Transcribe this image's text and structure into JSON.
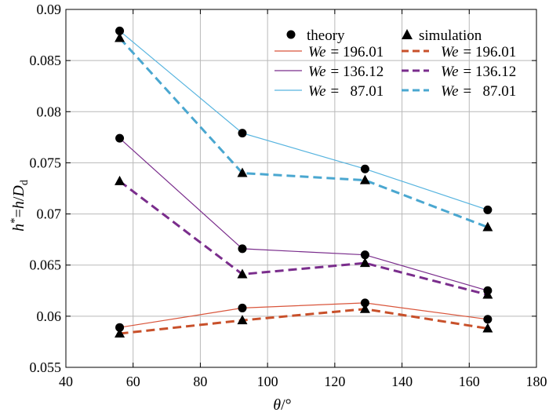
{
  "chart_data": {
    "type": "line",
    "xlim": [
      40,
      180
    ],
    "ylim": [
      0.055,
      0.09
    ],
    "xticks": [
      "40",
      "60",
      "80",
      "100",
      "120",
      "140",
      "160",
      "180"
    ],
    "yticks": [
      "0.055",
      "0.06",
      "0.065",
      "0.07",
      "0.075",
      "0.08",
      "0.085",
      "0.09"
    ],
    "xticks_values": [
      40,
      60,
      80,
      100,
      120,
      140,
      160,
      180
    ],
    "yticks_values": [
      0.055,
      0.06,
      0.065,
      0.07,
      0.075,
      0.08,
      0.085,
      0.09
    ],
    "xlabel": {
      "base": "θ",
      "suffix": "/°"
    },
    "ylabel": {
      "h": "h",
      "star": "*",
      "eq": "=",
      "h2": "h",
      "slash": "/",
      "D": "D",
      "sub": "d"
    },
    "grid": true,
    "legend_placement": "top-right",
    "legend": {
      "theory_title": "theory",
      "simulation_title": "simulation",
      "we_label": "We",
      "entries": [
        {
          "value": "= 196.01",
          "color": "#d9553b"
        },
        {
          "value": "= 136.12",
          "color": "#7a2d8c"
        },
        {
          "value": "=   87.01",
          "color": "#57b4df"
        }
      ],
      "sim_entries": [
        {
          "value": "= 196.01",
          "color": "#c8502a"
        },
        {
          "value": "= 136.12",
          "color": "#7a2d8c"
        },
        {
          "value": "=   87.01",
          "color": "#4aa7d0"
        }
      ]
    },
    "x": [
      56,
      92.5,
      129,
      165.5
    ],
    "series": [
      {
        "group": "theory",
        "we": "196.01",
        "color": "#d9553b",
        "style": "solid",
        "marker": "circle",
        "values": [
          0.0589,
          0.0608,
          0.0613,
          0.0597
        ]
      },
      {
        "group": "theory",
        "we": "136.12",
        "color": "#7a2d8c",
        "style": "solid",
        "marker": "circle",
        "values": [
          0.0774,
          0.0666,
          0.066,
          0.0625
        ]
      },
      {
        "group": "theory",
        "we": "87.01",
        "color": "#57b4df",
        "style": "solid",
        "marker": "circle",
        "values": [
          0.0879,
          0.0779,
          0.0744,
          0.0704
        ]
      },
      {
        "group": "simulation",
        "we": "196.01",
        "color": "#c8502a",
        "style": "dashed",
        "marker": "triangle",
        "values": [
          0.0583,
          0.0596,
          0.0607,
          0.0588
        ]
      },
      {
        "group": "simulation",
        "we": "136.12",
        "color": "#7a2d8c",
        "style": "dashed",
        "marker": "triangle",
        "values": [
          0.0732,
          0.0641,
          0.0652,
          0.0621
        ]
      },
      {
        "group": "simulation",
        "we": "87.01",
        "color": "#4aa7d0",
        "style": "dashed",
        "marker": "triangle",
        "values": [
          0.0872,
          0.074,
          0.0733,
          0.0687
        ]
      }
    ]
  }
}
